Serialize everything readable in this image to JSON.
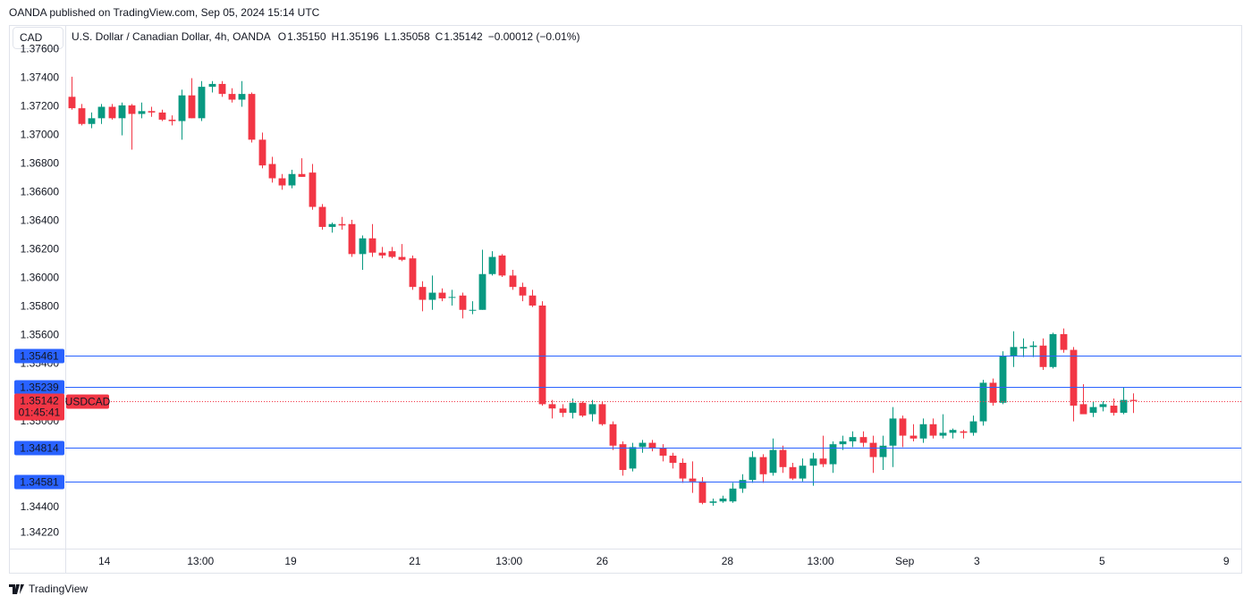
{
  "chart_data": {
    "type": "candlestick",
    "published": "OANDA published on TradingView.com, Sep 05, 2024 15:14 UTC",
    "currency": "CAD",
    "title": "U.S. Dollar / Canadian Dollar, 4h, OANDA",
    "ohlc": [
      {
        "label": "O",
        "value": "1.35150"
      },
      {
        "label": "H",
        "value": "1.35196"
      },
      {
        "label": "L",
        "value": "1.35058"
      },
      {
        "label": "C",
        "value": "1.35142"
      }
    ],
    "change": "−0.00012 (−0.01%)",
    "brand": "TradingView",
    "up_color": "#089981",
    "down_color": "#f23645",
    "level_color": "#2962ff",
    "open": [
      1.3727,
      1.3719,
      1.3708,
      1.3712,
      1.372,
      1.3712,
      1.3721,
      1.3715,
      1.3717,
      1.3716,
      1.3711,
      1.371,
      1.3728,
      1.3712,
      1.3734,
      1.3736,
      1.3729,
      1.3725,
      1.3729,
      1.3697,
      1.368,
      1.367,
      1.3665,
      1.3673,
      1.3674,
      1.365,
      1.3636,
      1.3638,
      1.3638,
      1.3617,
      1.3628,
      1.3618,
      1.3619,
      1.3615,
      1.3614,
      1.3594,
      1.3585,
      1.359,
      1.3587,
      1.3588,
      1.3578,
      1.3578,
      1.3603,
      1.3616,
      1.3602,
      1.3594,
      1.3588,
      1.3581,
      1.3512,
      1.3509,
      1.3506,
      1.3513,
      1.3505,
      1.3512,
      1.3498,
      1.3484,
      1.3467,
      1.3482,
      1.3485,
      1.3481,
      1.3476,
      1.3471,
      1.346,
      1.3458,
      1.3443,
      1.3444,
      1.3444,
      1.3453,
      1.3459,
      1.3475,
      1.3464,
      1.348,
      1.3468,
      1.346,
      1.3469,
      1.3474,
      1.347,
      1.3484,
      1.3486,
      1.3489,
      1.3485,
      1.3475,
      1.3483,
      1.3502,
      1.349,
      1.3488,
      1.3498,
      1.349,
      1.3492,
      1.3493,
      1.3492,
      1.35,
      1.3527,
      1.3513,
      1.3546,
      1.3551,
      1.3552,
      1.3553,
      1.3538,
      1.3561,
      1.355,
      1.3512,
      1.3506,
      1.351,
      1.3511,
      1.3506,
      1.3515
    ],
    "high": [
      1.3741,
      1.3722,
      1.3716,
      1.3722,
      1.3722,
      1.3723,
      1.3722,
      1.3723,
      1.372,
      1.3718,
      1.3714,
      1.3732,
      1.374,
      1.3738,
      1.3738,
      1.3738,
      1.3733,
      1.3738,
      1.373,
      1.3702,
      1.3685,
      1.3673,
      1.3676,
      1.3684,
      1.368,
      1.3652,
      1.3639,
      1.3643,
      1.3641,
      1.363,
      1.3638,
      1.3622,
      1.3622,
      1.3624,
      1.3616,
      1.3598,
      1.3602,
      1.3593,
      1.3592,
      1.359,
      1.3584,
      1.362,
      1.3619,
      1.3617,
      1.3606,
      1.3597,
      1.3592,
      1.3584,
      1.3515,
      1.3512,
      1.3516,
      1.3514,
      1.3515,
      1.3514,
      1.35,
      1.3486,
      1.3485,
      1.3487,
      1.3487,
      1.3484,
      1.3478,
      1.3474,
      1.3472,
      1.3461,
      1.3446,
      1.3448,
      1.3457,
      1.3463,
      1.3479,
      1.3477,
      1.3488,
      1.3483,
      1.3471,
      1.3474,
      1.3478,
      1.349,
      1.3486,
      1.349,
      1.3493,
      1.3493,
      1.349,
      1.349,
      1.351,
      1.3504,
      1.3498,
      1.3502,
      1.3502,
      1.3505,
      1.3495,
      1.3494,
      1.3504,
      1.3529,
      1.353,
      1.3549,
      1.3563,
      1.3558,
      1.3556,
      1.3558,
      1.3562,
      1.3565,
      1.3552,
      1.3526,
      1.3514,
      1.3514,
      1.3516,
      1.3524,
      1.35196
    ],
    "low": [
      1.3718,
      1.3707,
      1.3705,
      1.3708,
      1.3711,
      1.37,
      1.369,
      1.3712,
      1.3713,
      1.371,
      1.3707,
      1.3697,
      1.3712,
      1.371,
      1.373,
      1.3727,
      1.3723,
      1.372,
      1.3695,
      1.3677,
      1.3667,
      1.3662,
      1.3663,
      1.3671,
      1.3648,
      1.3634,
      1.3632,
      1.3634,
      1.3615,
      1.3606,
      1.3615,
      1.3614,
      1.3614,
      1.3612,
      1.3592,
      1.3577,
      1.3578,
      1.3584,
      1.3581,
      1.3572,
      1.3575,
      1.3578,
      1.3602,
      1.3601,
      1.3592,
      1.3584,
      1.358,
      1.3511,
      1.3502,
      1.3503,
      1.3502,
      1.3503,
      1.35,
      1.3497,
      1.348,
      1.3462,
      1.3465,
      1.3478,
      1.3479,
      1.3472,
      1.3467,
      1.3457,
      1.345,
      1.3442,
      1.3441,
      1.3443,
      1.3443,
      1.345,
      1.3457,
      1.3457,
      1.3462,
      1.3464,
      1.3459,
      1.3458,
      1.3455,
      1.3468,
      1.3464,
      1.348,
      1.3482,
      1.3482,
      1.3464,
      1.3466,
      1.3468,
      1.3482,
      1.3486,
      1.3485,
      1.3488,
      1.3488,
      1.3488,
      1.3488,
      1.349,
      1.3497,
      1.3511,
      1.3512,
      1.3538,
      1.3545,
      1.3545,
      1.3536,
      1.3537,
      1.3548,
      1.35,
      1.3506,
      1.3503,
      1.3507,
      1.3504,
      1.3505,
      1.35058
    ],
    "close": [
      1.3719,
      1.3708,
      1.3712,
      1.372,
      1.3712,
      1.3721,
      1.3715,
      1.3717,
      1.3716,
      1.3711,
      1.371,
      1.3728,
      1.3712,
      1.3734,
      1.3736,
      1.3729,
      1.3725,
      1.3729,
      1.3697,
      1.3679,
      1.367,
      1.3665,
      1.3673,
      1.3671,
      1.365,
      1.3636,
      1.3638,
      1.3637,
      1.3617,
      1.3628,
      1.3618,
      1.3616,
      1.3615,
      1.3613,
      1.3594,
      1.3585,
      1.359,
      1.3586,
      1.3587,
      1.3578,
      1.3578,
      1.3603,
      1.3615,
      1.3602,
      1.3594,
      1.3588,
      1.3581,
      1.3512,
      1.3509,
      1.3506,
      1.3513,
      1.3504,
      1.3512,
      1.3498,
      1.3483,
      1.3466,
      1.3482,
      1.3485,
      1.3481,
      1.3476,
      1.3471,
      1.346,
      1.3458,
      1.3443,
      1.3444,
      1.3446,
      1.3453,
      1.3459,
      1.3475,
      1.3463,
      1.348,
      1.3468,
      1.346,
      1.3469,
      1.3474,
      1.347,
      1.3484,
      1.3486,
      1.3489,
      1.3485,
      1.3475,
      1.3483,
      1.3502,
      1.349,
      1.3488,
      1.3498,
      1.349,
      1.3492,
      1.3494,
      1.3492,
      1.35,
      1.3527,
      1.3513,
      1.3546,
      1.3552,
      1.3552,
      1.3553,
      1.3538,
      1.3561,
      1.355,
      1.3511,
      1.3505,
      1.351,
      1.3512,
      1.3506,
      1.3515,
      1.35142
    ],
    "xlim": [
      -0.6,
      116.8
    ],
    "xticks": [
      {
        "value": 3.3,
        "label": "14"
      },
      {
        "value": 12.9,
        "label": "13:00"
      },
      {
        "value": 21.9,
        "label": "19"
      },
      {
        "value": 34.3,
        "label": "21"
      },
      {
        "value": 43.7,
        "label": "13:00"
      },
      {
        "value": 53.0,
        "label": "26"
      },
      {
        "value": 65.5,
        "label": "28"
      },
      {
        "value": 74.8,
        "label": "13:00"
      },
      {
        "value": 83.2,
        "label": "Sep"
      },
      {
        "value": 90.4,
        "label": "3"
      },
      {
        "value": 102.9,
        "label": "5"
      },
      {
        "value": 115.3,
        "label": "9"
      }
    ],
    "ylim": [
      1.3411,
      1.37772
    ],
    "yticks": [
      {
        "value": 1.376,
        "label": "1.37600"
      },
      {
        "value": 1.374,
        "label": "1.37400"
      },
      {
        "value": 1.372,
        "label": "1.37200"
      },
      {
        "value": 1.37,
        "label": "1.37000"
      },
      {
        "value": 1.368,
        "label": "1.36800"
      },
      {
        "value": 1.366,
        "label": "1.36600"
      },
      {
        "value": 1.364,
        "label": "1.36400"
      },
      {
        "value": 1.362,
        "label": "1.36200"
      },
      {
        "value": 1.36,
        "label": "1.36000"
      },
      {
        "value": 1.358,
        "label": "1.35800"
      },
      {
        "value": 1.356,
        "label": "1.35600"
      },
      {
        "value": 1.354,
        "label": "1.35400"
      },
      {
        "value": 1.35,
        "label": "1.35000"
      },
      {
        "value": 1.344,
        "label": "1.34400"
      },
      {
        "value": 1.3422,
        "label": "1.34220"
      }
    ],
    "levels": [
      {
        "value": 1.35461,
        "label": "1.35461"
      },
      {
        "value": 1.35239,
        "label": "1.35239"
      },
      {
        "value": 1.34814,
        "label": "1.34814"
      },
      {
        "value": 1.34581,
        "label": "1.34581"
      }
    ],
    "last_price": {
      "value": 1.35142,
      "label": "1.35142"
    },
    "countdown": "01:45:41",
    "symbol": "USDCAD",
    "grid": false
  }
}
